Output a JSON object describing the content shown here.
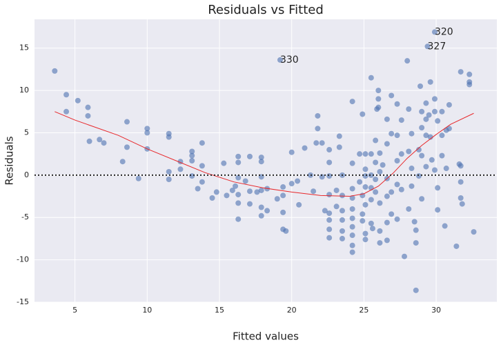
{
  "chart_data": {
    "type": "scatter",
    "title": "Residuals vs Fitted",
    "x_label": "Fitted values",
    "y_label": "Residuals",
    "color": "#4c72b0",
    "x": [
      3.6,
      4.4,
      4.4,
      5.2,
      5.9,
      5.9,
      6,
      6.7,
      7,
      8.3,
      8.6,
      8.6,
      9.4,
      10,
      10,
      10,
      11.5,
      11.5,
      11.5,
      11.5,
      12.3,
      12.3,
      13.1,
      13.1,
      13.1,
      13.1,
      13.5,
      13.8,
      13.8,
      13.8,
      14.5,
      14.8,
      15.3,
      15.5,
      15.9,
      16.1,
      16.3,
      16.3,
      16.3,
      16.3,
      16.3,
      16.3,
      16.8,
      17.1,
      17.1,
      17.1,
      17.6,
      17.9,
      17.9,
      17.9,
      17.9,
      17.9,
      17.9,
      18.3,
      18.3,
      19,
      19.2,
      19.4,
      19.4,
      19.4,
      19.4,
      19.6,
      20,
      20,
      20.4,
      20.5,
      20.9,
      21.3,
      21.5,
      21.7,
      21.8,
      21.8,
      22.1,
      22.1,
      22.3,
      22.6,
      22.6,
      22.6,
      22.6,
      22.6,
      22.6,
      22.6,
      22.6,
      23.1,
      23.1,
      23.5,
      23.5,
      23.5,
      23.5,
      23.5,
      23.5,
      23.3,
      23.3,
      24.2,
      24.2,
      24.2,
      24.2,
      24.2,
      24.2,
      24.2,
      24.2,
      24.2,
      24.2,
      24.7,
      24.7,
      24.9,
      24.9,
      24.9,
      24.9,
      25.1,
      25.1,
      25.1,
      25.1,
      25.1,
      25.1,
      25.1,
      25.5,
      25.5,
      25.5,
      25.5,
      25.5,
      25.5,
      25.6,
      25.8,
      25.8,
      25.8,
      25.8,
      25.9,
      26,
      26,
      26,
      26.1,
      26.1,
      26.1,
      26.1,
      26.1,
      26.3,
      26.6,
      26.6,
      26.6,
      26.6,
      26.6,
      26.6,
      26.9,
      26.9,
      26.9,
      26.9,
      27.3,
      27.3,
      27.3,
      27.3,
      27.3,
      27.6,
      27.6,
      27.6,
      27.8,
      28,
      28.1,
      28.1,
      28.1,
      28.3,
      28.3,
      28.3,
      28.5,
      28.6,
      28.6,
      28.6,
      28.8,
      28.8,
      28.9,
      29,
      29,
      29,
      29,
      29.3,
      29.3,
      29.3,
      29.3,
      29.4,
      29.5,
      29.6,
      29.6,
      29.7,
      29.9,
      29.9,
      29.9,
      29.9,
      30.1,
      30.1,
      30.1,
      30.4,
      30.4,
      30.4,
      30.6,
      30.7,
      30.7,
      30.9,
      30.9,
      31.4,
      31.6,
      31.7,
      31.7,
      31.7,
      31.7,
      31.8,
      32.3,
      32.3,
      32.3,
      32.6
    ],
    "values": [
      12.3,
      9.5,
      7.5,
      8.8,
      8,
      7,
      4,
      4.2,
      3.8,
      1.6,
      6.3,
      3.3,
      -0.4,
      5.5,
      5,
      3.1,
      4.9,
      4.5,
      0.4,
      -0.5,
      1.6,
      0.7,
      2.8,
      2.3,
      1.7,
      -0.1,
      -1.6,
      3.8,
      1.1,
      -0.8,
      -2.7,
      -2,
      1.4,
      -2.4,
      -1.8,
      -1.3,
      2.2,
      1.5,
      -0.3,
      -2.3,
      -3.3,
      -5.2,
      -0.7,
      2.2,
      -1.9,
      -3.4,
      -2,
      2.1,
      1.6,
      -0.2,
      -1.8,
      -3.8,
      -4.8,
      -1.6,
      -4.2,
      -2.8,
      13.6,
      -1.4,
      -2.4,
      -4.4,
      -6.4,
      -6.6,
      2.7,
      -1,
      -0.7,
      -3.5,
      3.2,
      0,
      -1.9,
      3.8,
      7,
      5.5,
      3.8,
      -0.2,
      -4.2,
      -0.1,
      3,
      1.5,
      -2.3,
      -4.5,
      -5.3,
      -6.4,
      -7.4,
      -1.8,
      -3.7,
      -2.4,
      -4.2,
      -5.3,
      -6.6,
      -7.5,
      0,
      4.6,
      3.3,
      8.7,
      1.4,
      -1.6,
      -2.7,
      -4,
      -5.1,
      -6.1,
      -7.1,
      -8.3,
      -9.1,
      2.5,
      -0.8,
      7.2,
      -2.4,
      -4.6,
      -5.4,
      2.5,
      0.7,
      -0.1,
      -1.4,
      -3.5,
      -6.9,
      -7.6,
      11.5,
      2.5,
      0,
      -1.5,
      -2.9,
      -5.7,
      -6.3,
      4.1,
      1.5,
      -0.5,
      -2,
      7.8,
      10,
      9,
      8,
      2.6,
      0.4,
      -3.3,
      -6.6,
      -8,
      1.2,
      6.6,
      3.7,
      -0.4,
      -2.5,
      -5.6,
      -7.7,
      9.4,
      4.9,
      -2,
      -4.6,
      8.4,
      4.7,
      1.7,
      -1.1,
      -5.2,
      6.5,
      2.5,
      -1.7,
      -9.6,
      13.5,
      7.8,
      2.8,
      -4,
      4.9,
      0.8,
      -1.3,
      -5.5,
      -13.6,
      -6.5,
      -8,
      3,
      -0.1,
      10.5,
      7.5,
      5.6,
      2.3,
      -2.8,
      8.5,
      6.6,
      4.7,
      1,
      15.2,
      7.1,
      11,
      4.5,
      1.8,
      16.9,
      9,
      7.5,
      0.6,
      6.4,
      -1.5,
      -4.1,
      7.5,
      4.7,
      2.3,
      -6,
      5.3,
      0.8,
      8.3,
      5.5,
      -8.4,
      1.3,
      12.2,
      1.1,
      -0.8,
      -2.7,
      -3.4,
      11.9,
      11,
      10.7,
      -6.7
    ],
    "lowess": {
      "color": "#e8272a",
      "x": [
        3.6,
        5,
        8,
        10,
        12,
        14,
        16,
        18,
        20,
        22,
        24,
        25,
        26,
        27,
        28,
        29,
        30,
        31,
        32.6
      ],
      "values": [
        7.5,
        6.5,
        4.7,
        3.1,
        1.7,
        0.3,
        -0.8,
        -1.5,
        -2,
        -2.4,
        -2.5,
        -2.2,
        -1.3,
        0.2,
        2,
        3.5,
        4.8,
        6,
        7.3
      ]
    },
    "hline": 0,
    "annotations": [
      {
        "text": "320",
        "x": 29.9,
        "y": 16.9
      },
      {
        "text": "327",
        "x": 29.4,
        "y": 15.2
      },
      {
        "text": "330",
        "x": 19.2,
        "y": 13.6
      }
    ],
    "xlim": [
      2.2,
      34.2
    ],
    "ylim": [
      -15,
      18.4
    ],
    "xticks": [
      5,
      10,
      15,
      20,
      25,
      30
    ],
    "yticks": [
      -15,
      -10,
      -5,
      0,
      5,
      10,
      15
    ],
    "grid": true
  }
}
